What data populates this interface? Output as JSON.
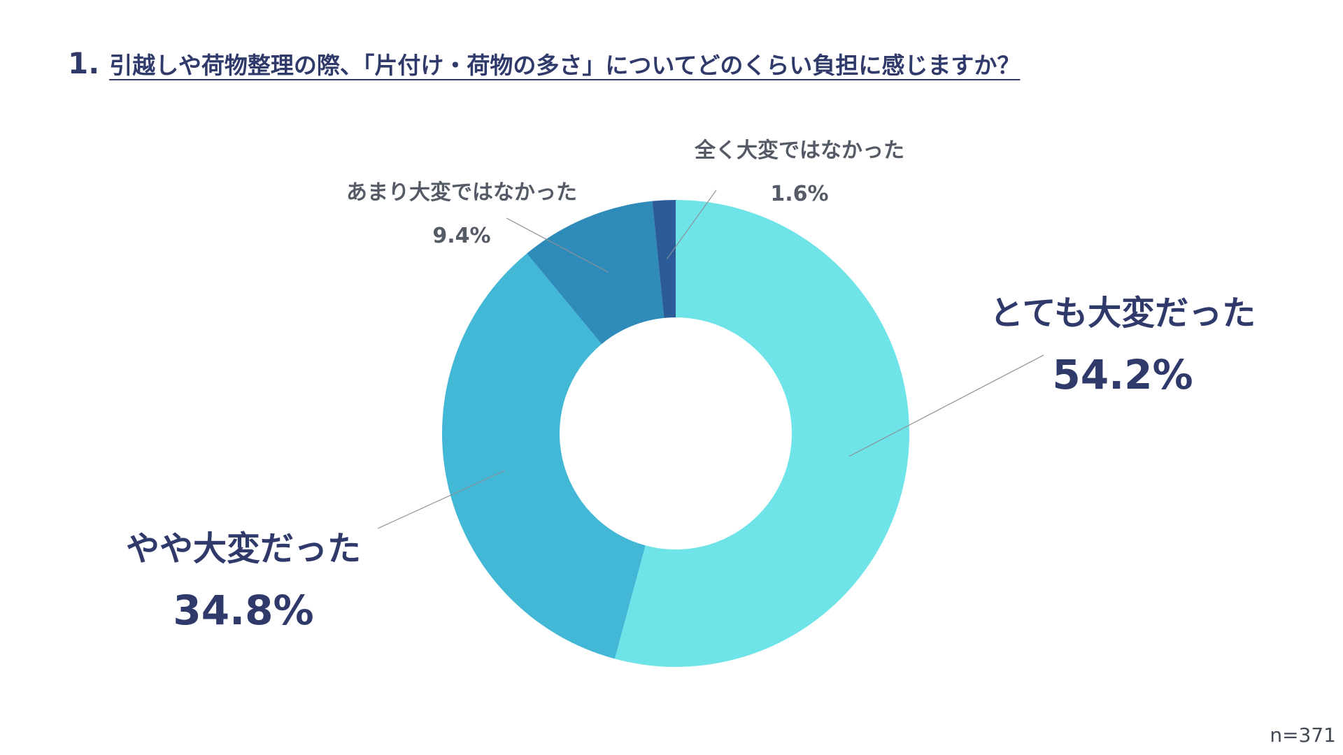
{
  "question": {
    "number": "1.",
    "text": "引越しや荷物整理の際、「片付け・荷物の多さ」についてどのくらい負担に感じますか？"
  },
  "chart_data": {
    "type": "pie",
    "variant": "donut",
    "categories": [
      "とても大変だった",
      "やや大変だった",
      "あまり大変ではなかった",
      "全く大変ではなかった"
    ],
    "values": [
      54.2,
      34.8,
      9.4,
      1.6
    ],
    "value_labels": [
      "54.2%",
      "34.8%",
      "9.4%",
      "1.6%"
    ],
    "colors": [
      "#6ee4e8",
      "#43b8d6",
      "#2f8bba",
      "#2b5b99"
    ],
    "start_angle_deg": 0,
    "direction": "clockwise",
    "legend": "none"
  },
  "footnote": "n=371"
}
